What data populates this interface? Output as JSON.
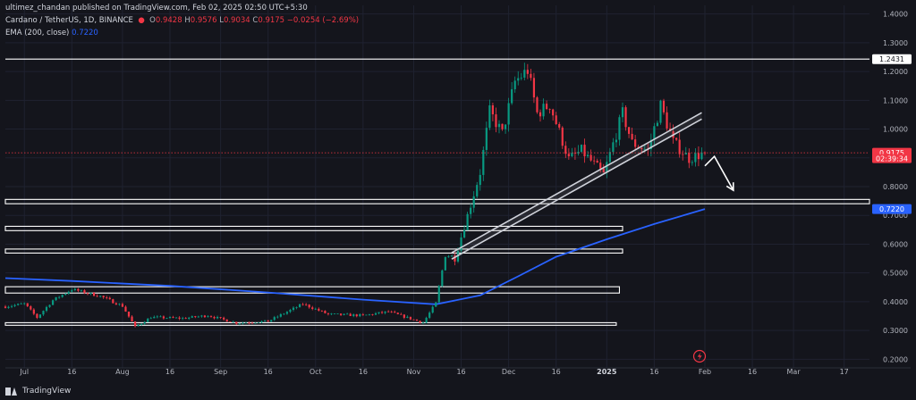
{
  "header": {
    "publisher": "ultimez_chandan published on TradingView.com, Feb 02, 2025 02:50 UTC+5:30",
    "symbol": "Cardano / TetherUS, 1D, BINANCE",
    "ohlc": {
      "o_label": "O",
      "o": "0.9428",
      "h_label": "H",
      "h": "0.9576",
      "l_label": "L",
      "l": "0.9034",
      "c_label": "C",
      "c": "0.9175",
      "change": "−0.0254 (−2.69%)"
    },
    "ema_label": "EMA (200, close)",
    "ema_value": "0.7220"
  },
  "footer": {
    "brand": "TradingView"
  },
  "colors": {
    "background": "#14151c",
    "up": "#089981",
    "down": "#f23645",
    "ema": "#2962ff",
    "zones": "#ffffff",
    "grid": "#1f2230"
  },
  "icons": {
    "brand": "tradingview-logo-icon",
    "event": "lightning-event-icon"
  },
  "chart_data": {
    "type": "candlestick",
    "title": "Cardano / TetherUS, 1D, BINANCE",
    "x_ticks": [
      "Jul",
      "16",
      "Aug",
      "16",
      "Sep",
      "16",
      "Oct",
      "16",
      "Nov",
      "16",
      "Dec",
      "16",
      "2025",
      "16",
      "Feb",
      "16",
      "Mar",
      "17"
    ],
    "x_tick_dates": [
      "2024-07-01",
      "2024-07-16",
      "2024-08-01",
      "2024-08-16",
      "2024-09-01",
      "2024-09-16",
      "2024-10-01",
      "2024-10-16",
      "2024-11-01",
      "2024-11-16",
      "2024-12-01",
      "2024-12-16",
      "2025-01-01",
      "2025-01-16",
      "2025-02-01",
      "2025-02-16",
      "2025-03-01",
      "2025-03-17"
    ],
    "y_ticks": [
      "1.4000",
      "1.3000",
      "1.2000",
      "1.1000",
      "1.0000",
      "0.9000",
      "0.8000",
      "0.7000",
      "0.6000",
      "0.5000",
      "0.4000",
      "0.3000",
      "0.2000"
    ],
    "y_tick_values": [
      1.4,
      1.3,
      1.2,
      1.1,
      1.0,
      0.9,
      0.8,
      0.7,
      0.6,
      0.5,
      0.4,
      0.3,
      0.2
    ],
    "ylim": [
      0.17,
      1.43
    ],
    "xlim": [
      "2024-06-25",
      "2025-03-25"
    ],
    "grid": true,
    "price_labels": [
      {
        "text": "1.2431",
        "value": 1.2431,
        "color": "#ffffff"
      },
      {
        "text": "0.9175",
        "value": 0.9175,
        "color": "#f23645"
      },
      {
        "text": "02:39:34",
        "value": 0.8975,
        "color": "#f23645"
      },
      {
        "text": "0.7220",
        "value": 0.722,
        "color": "#2962ff"
      }
    ],
    "current_price": 0.9175,
    "horizontal_lines": [
      {
        "value": 1.2431,
        "from": "2024-06-25",
        "to": "2025-03-25"
      }
    ],
    "zones": [
      {
        "top": 0.7555,
        "bottom": 0.7405,
        "from": "2024-06-25",
        "to": "2025-03-25"
      },
      {
        "top": 0.662,
        "bottom": 0.647,
        "from": "2024-06-25",
        "to": "2025-01-06"
      },
      {
        "top": 0.583,
        "bottom": 0.569,
        "from": "2024-06-25",
        "to": "2025-01-06"
      },
      {
        "top": 0.452,
        "bottom": 0.43,
        "from": "2024-06-25",
        "to": "2025-01-05"
      },
      {
        "top": 0.327,
        "bottom": 0.318,
        "from": "2024-06-25",
        "to": "2025-01-04"
      }
    ],
    "channel": {
      "start": [
        "2024-11-13",
        0.548
      ],
      "end": [
        "2025-01-31",
        1.035
      ],
      "width": 0.022
    },
    "arrow": [
      [
        "2025-02-01",
        0.872
      ],
      [
        "2025-02-04",
        0.905
      ],
      [
        "2025-02-10",
        0.787
      ]
    ],
    "ema200": [
      [
        "2024-06-25",
        0.482
      ],
      [
        "2024-07-16",
        0.472
      ],
      [
        "2024-08-16",
        0.455
      ],
      [
        "2024-09-16",
        0.432
      ],
      [
        "2024-10-16",
        0.407
      ],
      [
        "2024-11-08",
        0.391
      ],
      [
        "2024-11-22",
        0.422
      ],
      [
        "2024-12-04",
        0.488
      ],
      [
        "2024-12-16",
        0.556
      ],
      [
        "2025-01-01",
        0.617
      ],
      [
        "2025-01-16",
        0.67
      ],
      [
        "2025-02-01",
        0.722
      ]
    ],
    "candle_anchors": [
      [
        "2024-06-25",
        0.383
      ],
      [
        "2024-07-01",
        0.393
      ],
      [
        "2024-07-05",
        0.345
      ],
      [
        "2024-07-10",
        0.405
      ],
      [
        "2024-07-16",
        0.443
      ],
      [
        "2024-07-25",
        0.419
      ],
      [
        "2024-08-01",
        0.385
      ],
      [
        "2024-08-05",
        0.312
      ],
      [
        "2024-08-10",
        0.346
      ],
      [
        "2024-08-20",
        0.342
      ],
      [
        "2024-08-28",
        0.352
      ],
      [
        "2024-09-06",
        0.326
      ],
      [
        "2024-09-16",
        0.332
      ],
      [
        "2024-09-27",
        0.392
      ],
      [
        "2024-10-05",
        0.356
      ],
      [
        "2024-10-16",
        0.352
      ],
      [
        "2024-10-24",
        0.365
      ],
      [
        "2024-11-04",
        0.327
      ],
      [
        "2024-11-08",
        0.395
      ],
      [
        "2024-11-11",
        0.565
      ],
      [
        "2024-11-14",
        0.552
      ],
      [
        "2024-11-18",
        0.7
      ],
      [
        "2024-11-22",
        0.85
      ],
      [
        "2024-11-25",
        1.06
      ],
      [
        "2024-11-29",
        0.985
      ],
      [
        "2024-12-03",
        1.165
      ],
      [
        "2024-12-07",
        1.205
      ],
      [
        "2024-12-10",
        1.055
      ],
      [
        "2024-12-14",
        1.085
      ],
      [
        "2024-12-20",
        0.895
      ],
      [
        "2024-12-24",
        0.925
      ],
      [
        "2024-12-31",
        0.842
      ],
      [
        "2025-01-06",
        1.055
      ],
      [
        "2025-01-09",
        0.952
      ],
      [
        "2025-01-14",
        0.925
      ],
      [
        "2025-01-18",
        1.082
      ],
      [
        "2025-01-22",
        0.955
      ],
      [
        "2025-01-27",
        0.898
      ],
      [
        "2025-02-01",
        0.9175
      ]
    ]
  }
}
